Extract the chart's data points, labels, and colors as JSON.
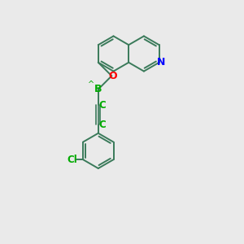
{
  "bg_color": "#eaeaea",
  "bond_color": "#3a7a5a",
  "N_color": "#0000ff",
  "O_color": "#ff0000",
  "Cl_color": "#00aa00",
  "B_color": "#00aa00",
  "C_color": "#00aa00",
  "line_width": 1.4,
  "font_size": 8.5,
  "figsize": [
    3.0,
    3.0
  ],
  "dpi": 100,
  "xlim": [
    0,
    10
  ],
  "ylim": [
    0,
    10
  ]
}
